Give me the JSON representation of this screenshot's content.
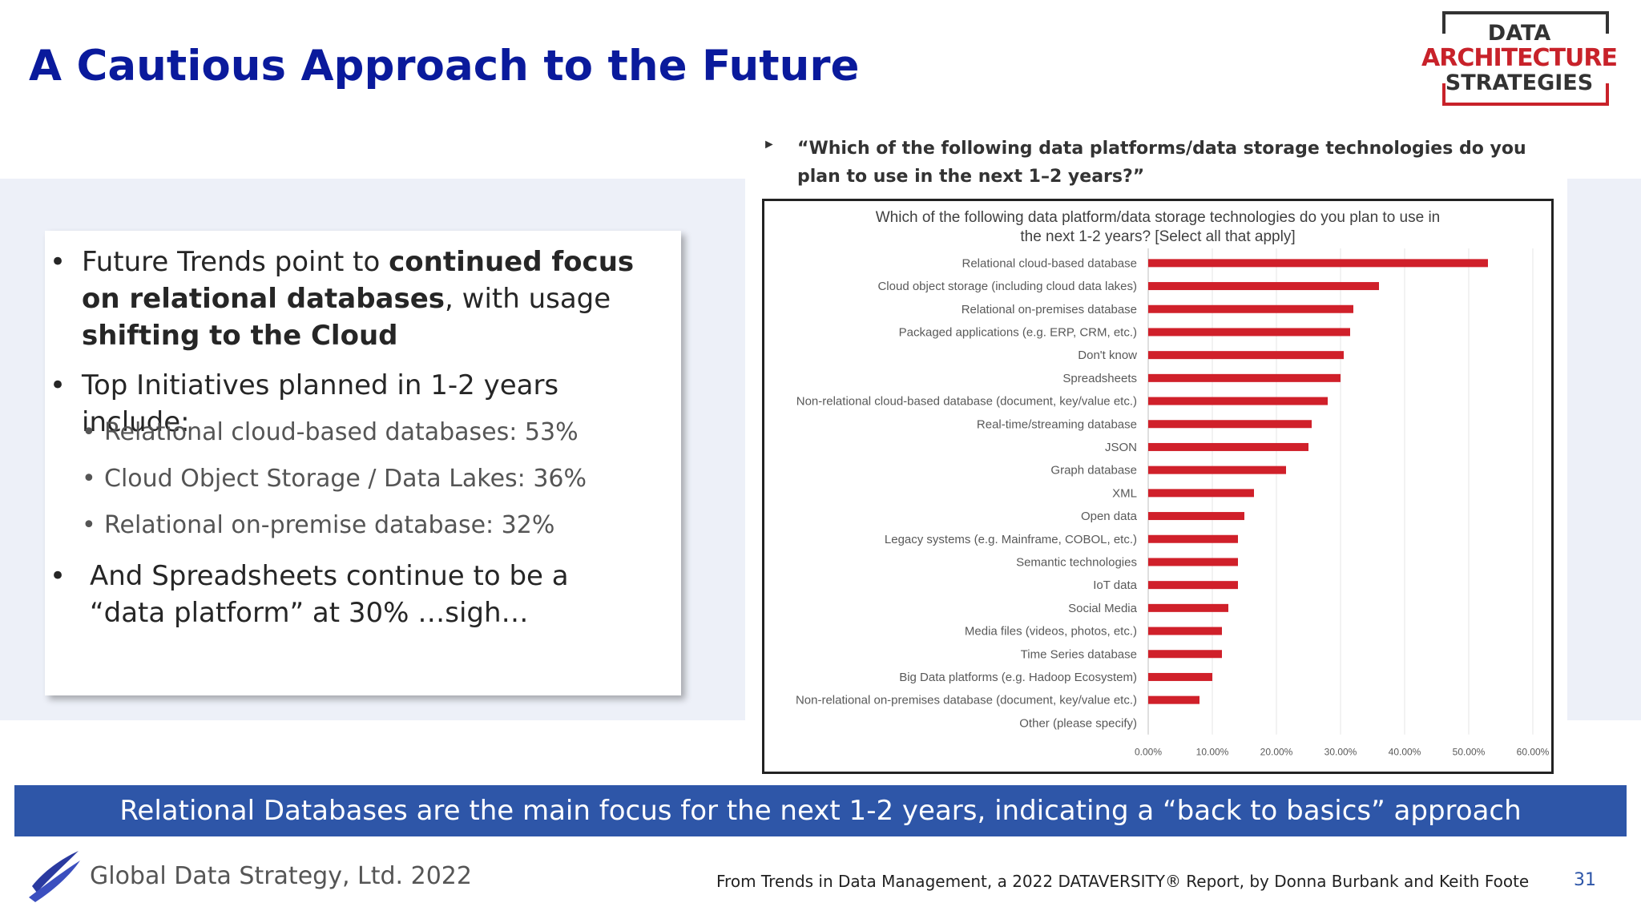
{
  "slide": {
    "title": "A Cautious Approach to the Future",
    "logo": {
      "line1": "DATA",
      "line2": "ARCHITECTURE",
      "line3": "STRATEGIES"
    },
    "bullets": {
      "b1": {
        "pre": "Future Trends point to ",
        "bold1": "continued focus on relational databases",
        "mid": ", with usage ",
        "bold2": "shifting to the Cloud"
      },
      "b2": "Top Initiatives planned in 1-2 years include:",
      "sub1": "Relational cloud-based databases: 53%",
      "sub2": "Cloud Object Storage / Data Lakes: 36%",
      "sub3": "Relational on-premise database: 32%",
      "b3": "And Spreadsheets continue to be a “data platform” at 30% …sigh…"
    },
    "question": "“Which of the following data platforms/data storage technologies do you plan to use in the next 1–2 years?”",
    "banner": "Relational Databases are the main focus for the next 1-2 years, indicating a “back to basics” approach",
    "footer_company": "Global Data Strategy, Ltd. 2022",
    "footer_source": "From Trends in Data Management, a 2022 DATAVERSITY® Report, by Donna Burbank and Keith Foote",
    "page_number": "31"
  },
  "chart_data": {
    "type": "bar",
    "orientation": "horizontal",
    "title_line1": "Which of the following data platform/data storage technologies do you plan to use in",
    "title_line2": "the next 1-2 years? [Select all that apply]",
    "categories": [
      "Relational cloud-based database",
      "Cloud object storage (including cloud data lakes)",
      "Relational on-premises database",
      "Packaged applications (e.g. ERP, CRM, etc.)",
      "Don't know",
      "Spreadsheets",
      "Non-relational cloud-based database (document, key/value etc.)",
      "Real-time/streaming database",
      "JSON",
      "Graph database",
      "XML",
      "Open data",
      "Legacy systems (e.g. Mainframe, COBOL, etc.)",
      "Semantic technologies",
      "IoT data",
      "Social Media",
      "Media files (videos, photos, etc.)",
      "Time Series database",
      "Big Data platforms (e.g. Hadoop Ecosystem)",
      "Non-relational on-premises database (document, key/value etc.)",
      "Other (please specify)"
    ],
    "values": [
      53,
      36,
      32,
      31.5,
      30.5,
      30,
      28,
      25.5,
      25,
      21.5,
      16.5,
      15,
      14,
      14,
      14,
      12.5,
      11.5,
      11.5,
      10,
      8,
      0
    ],
    "value_unit": "%",
    "xlim": [
      0,
      60
    ],
    "xticks": [
      "0.00%",
      "10.00%",
      "20.00%",
      "30.00%",
      "40.00%",
      "50.00%",
      "60.00%"
    ],
    "grid": true,
    "bar_color": "#d0202a"
  }
}
